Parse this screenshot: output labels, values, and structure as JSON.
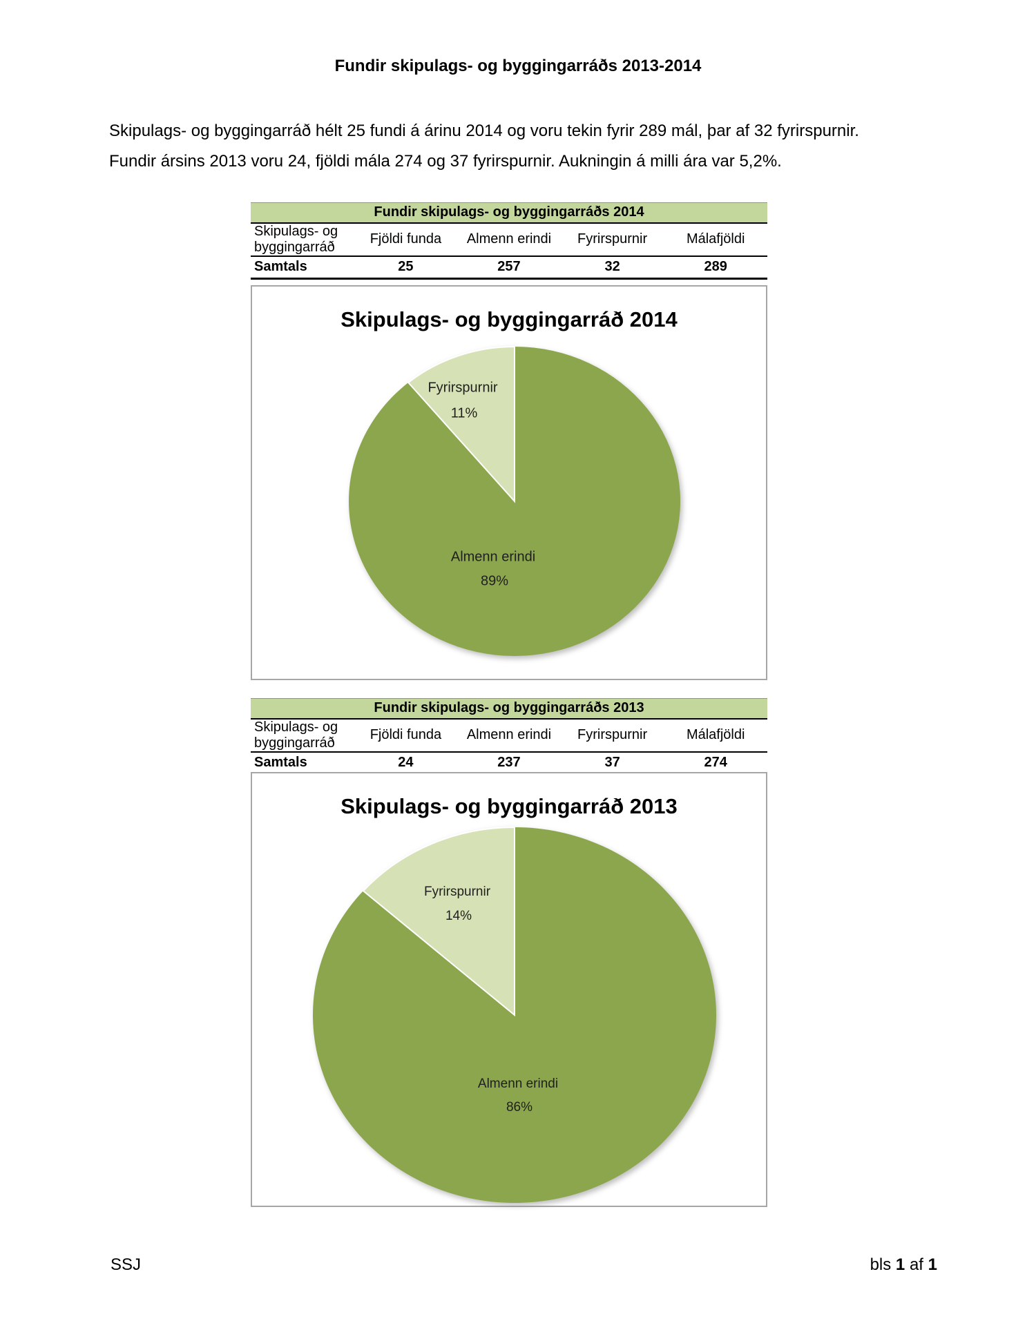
{
  "page": {
    "title": "Fundir skipulags- og byggingarráðs 2013-2014",
    "paragraph": {
      "line1": "Skipulags- og byggingarráð hélt 25 fundi á árinu 2014 og voru tekin fyrir 289 mál, þar af 32 fyrirspurnir.",
      "line2": "Fundir ársins 2013 voru 24, fjöldi mála 274 og 37 fyrirspurnir. Aukningin á milli ára var 5,2%."
    },
    "footer": {
      "left": "SSJ",
      "bls": "bls",
      "page_number": "1",
      "af": "af",
      "page_total": "1"
    }
  },
  "tables": [
    {
      "title": "Fundir skipulags- og byggingarráðs 2014",
      "columns": [
        "Skipulags- og byggingarráð",
        "Fjöldi funda",
        "Almenn erindi",
        "Fyrirspurnir",
        "Málafjöldi"
      ],
      "row_label": "Samtals",
      "values": [
        "25",
        "257",
        "32",
        "289"
      ]
    },
    {
      "title": "Fundir skipulags- og byggingarráðs 2013",
      "columns": [
        "Skipulags- og byggingarráð",
        "Fjöldi funda",
        "Almenn erindi",
        "Fyrirspurnir",
        "Málafjöldi"
      ],
      "row_label": "Samtals",
      "values": [
        "24",
        "237",
        "37",
        "274"
      ]
    }
  ],
  "chart_data": [
    {
      "type": "pie",
      "title": "Skipulags- og byggingarráð 2014",
      "labels": [
        "Almenn erindi",
        "Fyrirspurnir"
      ],
      "values": [
        257,
        32
      ],
      "percent_labels": [
        "89%",
        "11%"
      ],
      "colors": [
        "#8ca64d",
        "#d6e2b6"
      ],
      "legend": "none",
      "label_position": "inside"
    },
    {
      "type": "pie",
      "title": "Skipulags- og byggingarráð 2013",
      "labels": [
        "Almenn erindi",
        "Fyrirspurnir"
      ],
      "values": [
        237,
        37
      ],
      "percent_labels": [
        "86%",
        "14%"
      ],
      "colors": [
        "#8ca64d",
        "#d6e2b6"
      ],
      "legend": "none",
      "label_position": "inside"
    }
  ],
  "colors": {
    "table_header_green": "#c3d69b",
    "pie_dark_green": "#8ca64d",
    "pie_light_green": "#d6e2b6",
    "chart_border_gray": "#a6a6a6"
  }
}
